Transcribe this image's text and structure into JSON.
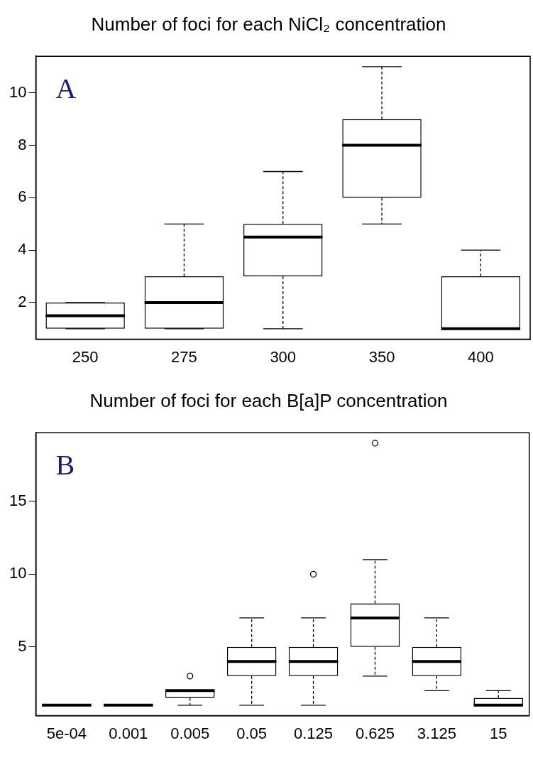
{
  "chart_data": [
    {
      "type": "box",
      "title": "Number of foci for each NiCl₂ concentration",
      "categories": [
        "250",
        "275",
        "300",
        "350",
        "400"
      ],
      "ylim": [
        0.6,
        11.4
      ],
      "yticks": [
        2,
        4,
        6,
        8,
        10
      ],
      "grid": false,
      "legend": false,
      "annotations": [
        "A"
      ],
      "boxes": [
        {
          "low": 1,
          "q1": 1,
          "median": 1.5,
          "q3": 2,
          "high": 2
        },
        {
          "low": 1,
          "q1": 1,
          "median": 2,
          "q3": 3,
          "high": 5
        },
        {
          "low": 1,
          "q1": 3,
          "median": 4.5,
          "q3": 5,
          "high": 7
        },
        {
          "low": 5,
          "q1": 6,
          "median": 8,
          "q3": 9,
          "high": 11
        },
        {
          "low": 1,
          "q1": 1,
          "median": 1,
          "q3": 3,
          "high": 4
        }
      ]
    },
    {
      "type": "box",
      "title": "Number of foci for each B[a]P concentration",
      "categories": [
        "5e-04",
        "0.001",
        "0.005",
        "0.05",
        "0.125",
        "0.625",
        "3.125",
        "15"
      ],
      "ylim": [
        0.28,
        19.72
      ],
      "yticks": [
        5,
        10,
        15
      ],
      "grid": false,
      "legend": false,
      "annotations": [
        "B"
      ],
      "boxes": [
        {
          "low": 1,
          "q1": 1,
          "median": 1,
          "q3": 1,
          "high": 1
        },
        {
          "low": 1,
          "q1": 1,
          "median": 1,
          "q3": 1,
          "high": 1
        },
        {
          "low": 1,
          "q1": 1.5,
          "median": 2,
          "q3": 2,
          "high": 2,
          "outliers": [
            3
          ]
        },
        {
          "low": 1,
          "q1": 3,
          "median": 4,
          "q3": 5,
          "high": 7
        },
        {
          "low": 1,
          "q1": 3,
          "median": 4,
          "q3": 5,
          "high": 7,
          "outliers": [
            10
          ]
        },
        {
          "low": 3,
          "q1": 5,
          "median": 7,
          "q3": 8,
          "high": 11,
          "outliers": [
            19
          ]
        },
        {
          "low": 2,
          "q1": 3,
          "median": 4,
          "q3": 5,
          "high": 7
        },
        {
          "low": 1,
          "q1": 1,
          "median": 1,
          "q3": 1.5,
          "high": 2
        }
      ]
    }
  ]
}
